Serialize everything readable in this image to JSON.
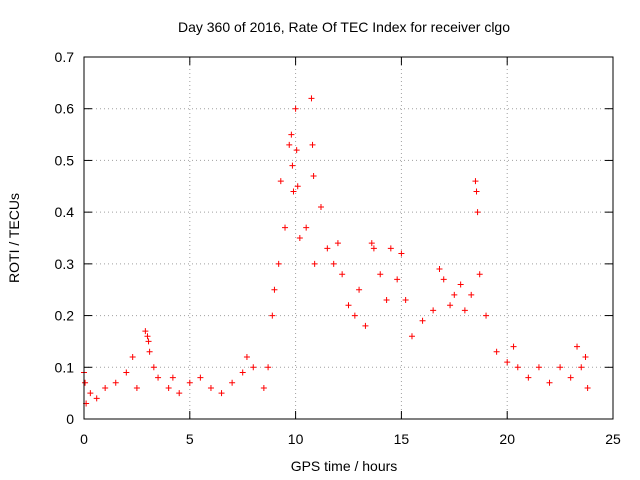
{
  "chart_data": {
    "type": "scatter",
    "title": "Day 360 of 2016, Rate Of TEC Index for receiver clgo",
    "xlabel": "GPS time / hours",
    "ylabel": "ROTI / TECUs",
    "xlim": [
      0,
      25
    ],
    "ylim": [
      0,
      0.7
    ],
    "xticks": [
      "0",
      "5",
      "10",
      "15",
      "20",
      "25"
    ],
    "yticks": [
      "0",
      "0.1",
      "0.2",
      "0.3",
      "0.4",
      "0.5",
      "0.6",
      "0.7"
    ],
    "grid": true,
    "marker": "+",
    "color": "#ff0000",
    "series": [
      {
        "points": [
          [
            0.0,
            0.09
          ],
          [
            0.05,
            0.07
          ],
          [
            0.1,
            0.03
          ],
          [
            0.3,
            0.05
          ],
          [
            0.6,
            0.04
          ],
          [
            1.0,
            0.06
          ],
          [
            1.5,
            0.07
          ],
          [
            2.0,
            0.09
          ],
          [
            2.3,
            0.12
          ],
          [
            2.5,
            0.06
          ],
          [
            2.9,
            0.17
          ],
          [
            3.0,
            0.16
          ],
          [
            3.05,
            0.15
          ],
          [
            3.1,
            0.13
          ],
          [
            3.3,
            0.1
          ],
          [
            3.5,
            0.08
          ],
          [
            4.0,
            0.06
          ],
          [
            4.2,
            0.08
          ],
          [
            4.5,
            0.05
          ],
          [
            5.0,
            0.07
          ],
          [
            5.5,
            0.08
          ],
          [
            6.0,
            0.06
          ],
          [
            6.5,
            0.05
          ],
          [
            7.0,
            0.07
          ],
          [
            7.5,
            0.09
          ],
          [
            7.7,
            0.12
          ],
          [
            8.0,
            0.1
          ],
          [
            8.5,
            0.06
          ],
          [
            8.7,
            0.1
          ],
          [
            8.9,
            0.2
          ],
          [
            9.0,
            0.25
          ],
          [
            9.2,
            0.3
          ],
          [
            9.3,
            0.46
          ],
          [
            9.5,
            0.37
          ],
          [
            9.7,
            0.53
          ],
          [
            9.8,
            0.55
          ],
          [
            9.85,
            0.49
          ],
          [
            9.9,
            0.44
          ],
          [
            10.0,
            0.6
          ],
          [
            10.05,
            0.52
          ],
          [
            10.1,
            0.45
          ],
          [
            10.2,
            0.35
          ],
          [
            10.5,
            0.37
          ],
          [
            10.75,
            0.62
          ],
          [
            10.8,
            0.53
          ],
          [
            10.85,
            0.47
          ],
          [
            10.9,
            0.3
          ],
          [
            11.2,
            0.41
          ],
          [
            11.5,
            0.33
          ],
          [
            11.8,
            0.3
          ],
          [
            12.0,
            0.34
          ],
          [
            12.2,
            0.28
          ],
          [
            12.5,
            0.22
          ],
          [
            12.8,
            0.2
          ],
          [
            13.0,
            0.25
          ],
          [
            13.3,
            0.18
          ],
          [
            13.6,
            0.34
          ],
          [
            13.7,
            0.33
          ],
          [
            14.0,
            0.28
          ],
          [
            14.3,
            0.23
          ],
          [
            14.5,
            0.33
          ],
          [
            14.8,
            0.27
          ],
          [
            15.0,
            0.32
          ],
          [
            15.2,
            0.23
          ],
          [
            15.5,
            0.16
          ],
          [
            16.0,
            0.19
          ],
          [
            16.5,
            0.21
          ],
          [
            16.8,
            0.29
          ],
          [
            17.0,
            0.27
          ],
          [
            17.3,
            0.22
          ],
          [
            17.5,
            0.24
          ],
          [
            17.8,
            0.26
          ],
          [
            18.0,
            0.21
          ],
          [
            18.3,
            0.24
          ],
          [
            18.5,
            0.46
          ],
          [
            18.55,
            0.44
          ],
          [
            18.6,
            0.4
          ],
          [
            18.7,
            0.28
          ],
          [
            19.0,
            0.2
          ],
          [
            19.5,
            0.13
          ],
          [
            20.0,
            0.11
          ],
          [
            20.3,
            0.14
          ],
          [
            20.5,
            0.1
          ],
          [
            21.0,
            0.08
          ],
          [
            21.5,
            0.1
          ],
          [
            22.0,
            0.07
          ],
          [
            22.5,
            0.1
          ],
          [
            23.0,
            0.08
          ],
          [
            23.3,
            0.14
          ],
          [
            23.5,
            0.1
          ],
          [
            23.7,
            0.12
          ],
          [
            23.8,
            0.06
          ]
        ]
      }
    ]
  }
}
